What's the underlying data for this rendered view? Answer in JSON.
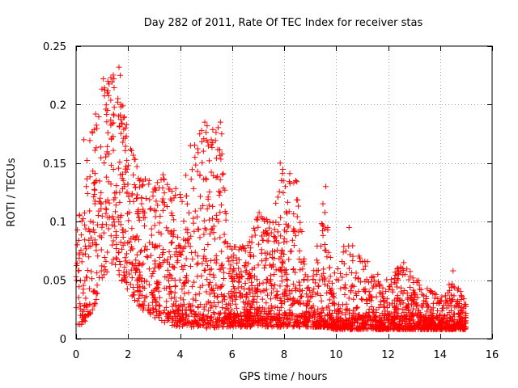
{
  "chart_data": {
    "type": "scatter",
    "title": "Day 282 of 2011, Rate Of TEC Index for receiver stas",
    "xlabel": "GPS time / hours",
    "ylabel": "ROTI / TECUs",
    "xlim": [
      0,
      16
    ],
    "ylim": [
      0,
      0.25
    ],
    "x_ticks": [
      0,
      2,
      4,
      6,
      8,
      10,
      12,
      14,
      16
    ],
    "x_tick_labels": [
      "0",
      "2",
      "4",
      "6",
      "8",
      "10",
      "12",
      "14",
      "16"
    ],
    "y_ticks": [
      0,
      0.05,
      0.1,
      0.15,
      0.2,
      0.25
    ],
    "y_tick_labels": [
      "0",
      "0.05",
      "0.1",
      "0.15",
      "0.2",
      "0.25"
    ],
    "grid": true,
    "legend": "none",
    "marker": "+",
    "color": "#ff0000",
    "series": [
      {
        "name": "ROTI",
        "envelope": [
          {
            "x": 0.0,
            "low": 0.012,
            "high": 0.095
          },
          {
            "x": 0.5,
            "low": 0.012,
            "high": 0.17
          },
          {
            "x": 1.0,
            "low": 0.05,
            "high": 0.22
          },
          {
            "x": 1.5,
            "low": 0.06,
            "high": 0.23
          },
          {
            "x": 2.0,
            "low": 0.04,
            "high": 0.18
          },
          {
            "x": 2.5,
            "low": 0.025,
            "high": 0.14
          },
          {
            "x": 3.0,
            "low": 0.018,
            "high": 0.135
          },
          {
            "x": 3.5,
            "low": 0.012,
            "high": 0.14
          },
          {
            "x": 4.0,
            "low": 0.01,
            "high": 0.125
          },
          {
            "x": 4.5,
            "low": 0.01,
            "high": 0.165
          },
          {
            "x": 5.0,
            "low": 0.008,
            "high": 0.185
          },
          {
            "x": 5.5,
            "low": 0.01,
            "high": 0.18
          },
          {
            "x": 6.0,
            "low": 0.01,
            "high": 0.08
          },
          {
            "x": 6.5,
            "low": 0.01,
            "high": 0.08
          },
          {
            "x": 7.0,
            "low": 0.01,
            "high": 0.11
          },
          {
            "x": 7.5,
            "low": 0.01,
            "high": 0.1
          },
          {
            "x": 8.0,
            "low": 0.01,
            "high": 0.15
          },
          {
            "x": 8.5,
            "low": 0.01,
            "high": 0.135
          },
          {
            "x": 9.0,
            "low": 0.01,
            "high": 0.04
          },
          {
            "x": 9.5,
            "low": 0.01,
            "high": 0.13
          },
          {
            "x": 10.0,
            "low": 0.008,
            "high": 0.06
          },
          {
            "x": 10.5,
            "low": 0.008,
            "high": 0.095
          },
          {
            "x": 11.0,
            "low": 0.008,
            "high": 0.07
          },
          {
            "x": 11.5,
            "low": 0.008,
            "high": 0.06
          },
          {
            "x": 12.0,
            "low": 0.008,
            "high": 0.05
          },
          {
            "x": 12.5,
            "low": 0.008,
            "high": 0.065
          },
          {
            "x": 13.0,
            "low": 0.008,
            "high": 0.055
          },
          {
            "x": 13.5,
            "low": 0.008,
            "high": 0.045
          },
          {
            "x": 14.0,
            "low": 0.008,
            "high": 0.035
          },
          {
            "x": 14.5,
            "low": 0.008,
            "high": 0.055
          },
          {
            "x": 15.0,
            "low": 0.008,
            "high": 0.03
          }
        ],
        "peaks": [
          {
            "x": 0.05,
            "y": 0.093
          },
          {
            "x": 0.3,
            "y": 0.17
          },
          {
            "x": 0.35,
            "y": 0.015
          },
          {
            "x": 0.75,
            "y": 0.192
          },
          {
            "x": 1.05,
            "y": 0.222
          },
          {
            "x": 1.2,
            "y": 0.21
          },
          {
            "x": 1.65,
            "y": 0.232
          },
          {
            "x": 1.7,
            "y": 0.225
          },
          {
            "x": 1.9,
            "y": 0.18
          },
          {
            "x": 2.1,
            "y": 0.162
          },
          {
            "x": 3.35,
            "y": 0.14
          },
          {
            "x": 4.4,
            "y": 0.165
          },
          {
            "x": 4.95,
            "y": 0.185
          },
          {
            "x": 5.55,
            "y": 0.185
          },
          {
            "x": 5.6,
            "y": 0.175
          },
          {
            "x": 7.85,
            "y": 0.15
          },
          {
            "x": 8.05,
            "y": 0.13
          },
          {
            "x": 8.45,
            "y": 0.135
          },
          {
            "x": 9.6,
            "y": 0.13
          },
          {
            "x": 10.5,
            "y": 0.095
          },
          {
            "x": 12.6,
            "y": 0.065
          },
          {
            "x": 14.5,
            "y": 0.058
          }
        ]
      }
    ]
  }
}
